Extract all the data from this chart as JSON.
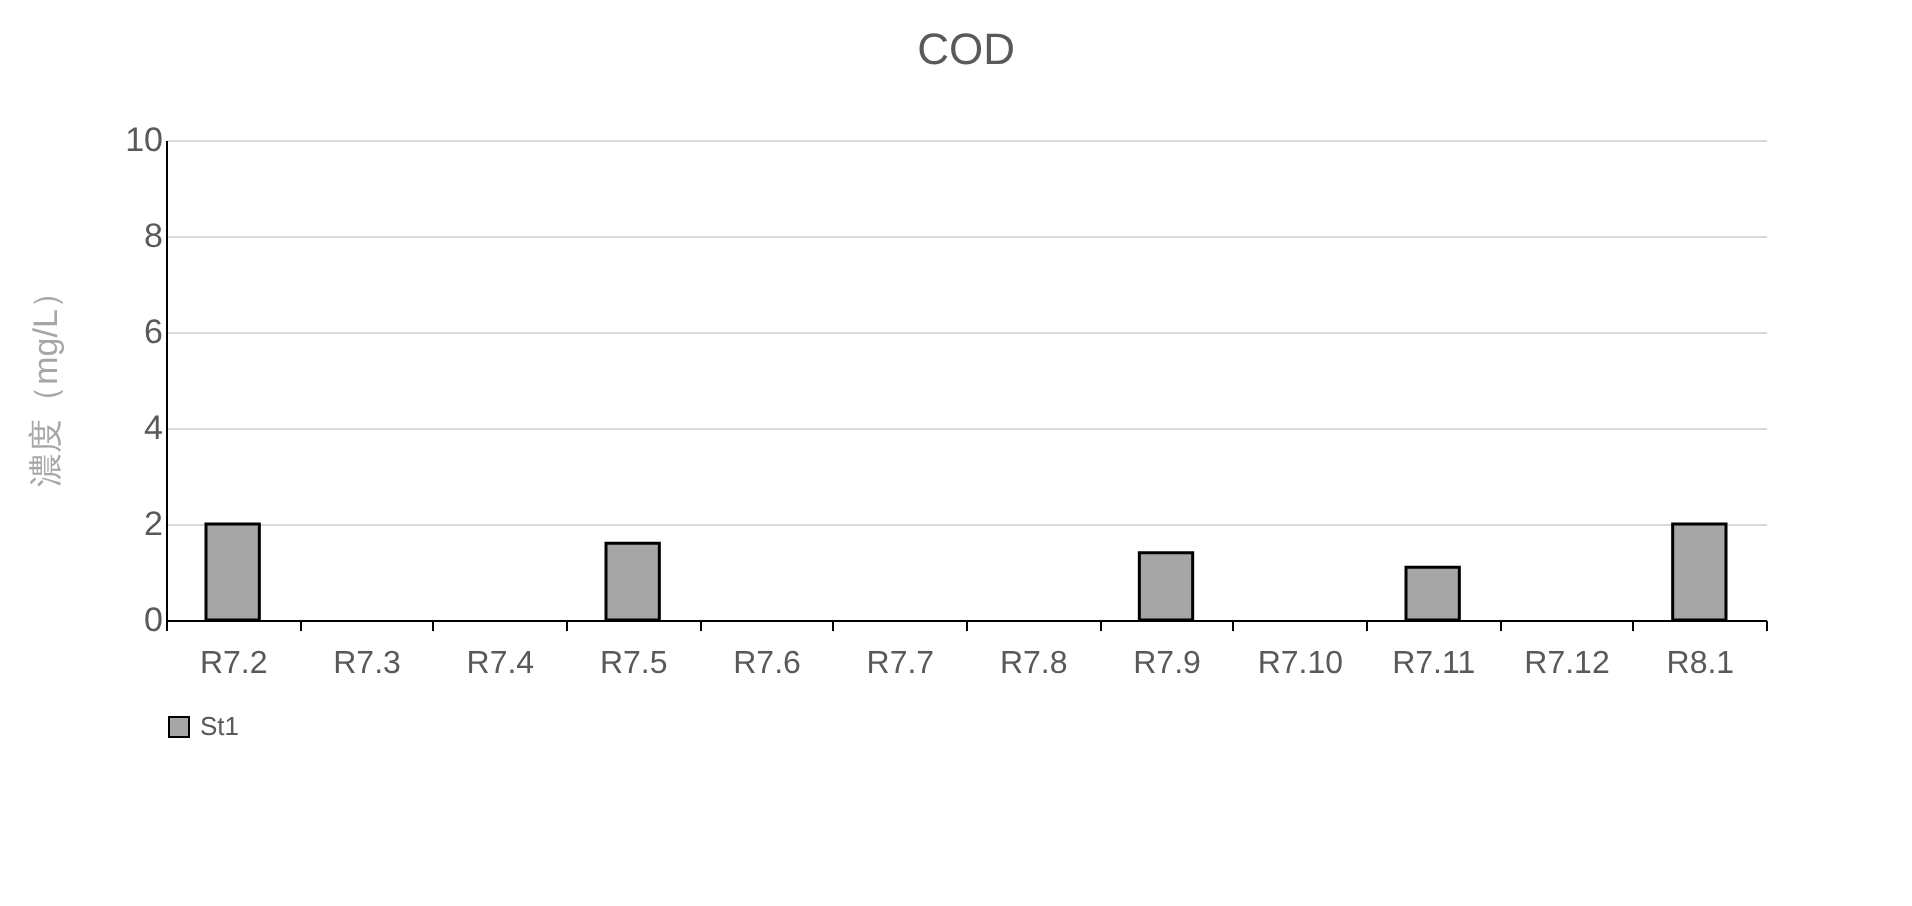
{
  "chart_data": {
    "type": "bar",
    "title": "COD",
    "ylabel": "濃度（mg/L）",
    "categories": [
      "R7.2",
      "R7.3",
      "R7.4",
      "R7.5",
      "R7.6",
      "R7.7",
      "R7.8",
      "R7.9",
      "R7.10",
      "R7.11",
      "R7.12",
      "R8.1"
    ],
    "series": [
      {
        "name": "St1",
        "color": "#a6a6a6",
        "values": [
          2.0,
          null,
          null,
          1.6,
          null,
          null,
          null,
          1.4,
          null,
          1.1,
          null,
          2.0
        ]
      }
    ],
    "ylim": [
      0,
      10
    ],
    "yticks": [
      0,
      2,
      4,
      6,
      8,
      10
    ],
    "grid": "y",
    "legend": "bottom"
  }
}
